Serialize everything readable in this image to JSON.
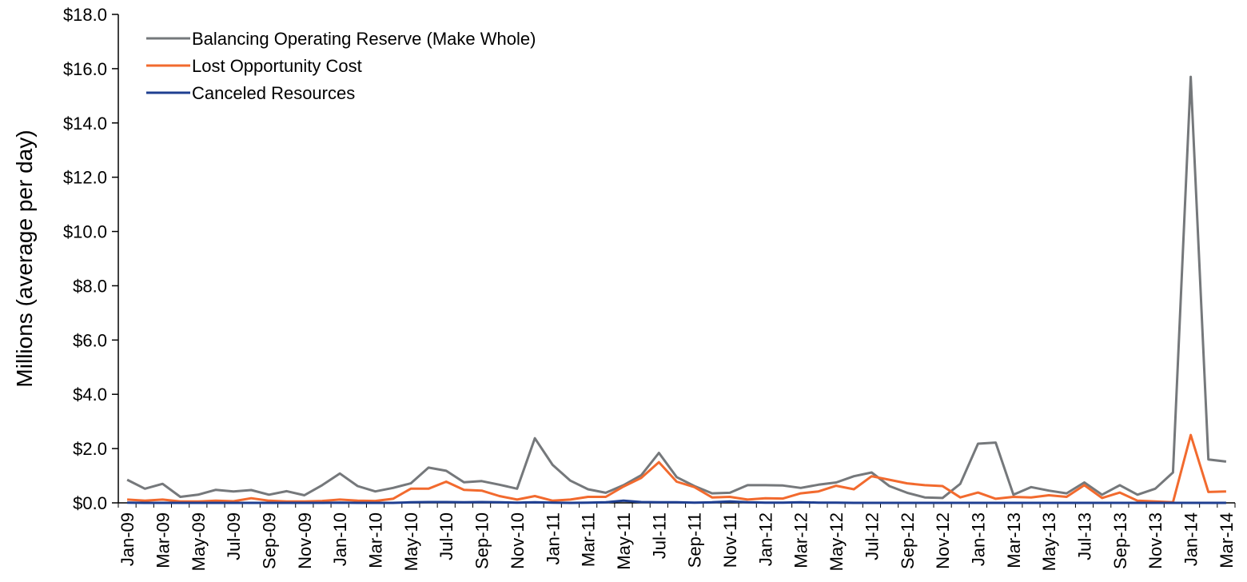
{
  "chart_data": {
    "type": "line",
    "title": "",
    "xlabel": "",
    "ylabel": "Millions (average per day)",
    "ylim": [
      0,
      18
    ],
    "y_ticks": [
      "$0.0",
      "$2.0",
      "$4.0",
      "$6.0",
      "$8.0",
      "$10.0",
      "$12.0",
      "$14.0",
      "$16.0",
      "$18.0"
    ],
    "x_tick_labels": [
      "Jan-09",
      "Mar-09",
      "May-09",
      "Jul-09",
      "Sep-09",
      "Nov-09",
      "Jan-10",
      "Mar-10",
      "May-10",
      "Jul-10",
      "Sep-10",
      "Nov-10",
      "Jan-11",
      "Mar-11",
      "May-11",
      "Jul-11",
      "Sep-11",
      "Nov-11",
      "Jan-12",
      "Mar-12",
      "May-12",
      "Jul-12",
      "Sep-12",
      "Nov-12",
      "Jan-13",
      "Mar-13",
      "May-13",
      "Jul-13",
      "Sep-13",
      "Nov-13",
      "Jan-14",
      "Mar-14"
    ],
    "categories": [
      "Jan-09",
      "Feb-09",
      "Mar-09",
      "Apr-09",
      "May-09",
      "Jun-09",
      "Jul-09",
      "Aug-09",
      "Sep-09",
      "Oct-09",
      "Nov-09",
      "Dec-09",
      "Jan-10",
      "Feb-10",
      "Mar-10",
      "Apr-10",
      "May-10",
      "Jun-10",
      "Jul-10",
      "Aug-10",
      "Sep-10",
      "Oct-10",
      "Nov-10",
      "Dec-10",
      "Jan-11",
      "Feb-11",
      "Mar-11",
      "Apr-11",
      "May-11",
      "Jun-11",
      "Jul-11",
      "Aug-11",
      "Sep-11",
      "Oct-11",
      "Nov-11",
      "Dec-11",
      "Jan-12",
      "Feb-12",
      "Mar-12",
      "Apr-12",
      "May-12",
      "Jun-12",
      "Jul-12",
      "Aug-12",
      "Sep-12",
      "Oct-12",
      "Nov-12",
      "Dec-12",
      "Jan-13",
      "Feb-13",
      "Mar-13",
      "Apr-13",
      "May-13",
      "Jun-13",
      "Jul-13",
      "Aug-13",
      "Sep-13",
      "Oct-13",
      "Nov-13",
      "Dec-13",
      "Jan-14",
      "Feb-14",
      "Mar-14"
    ],
    "legend_position": "top-left",
    "grid": false,
    "series": [
      {
        "name": "Balancing Operating Reserve (Make Whole)",
        "color": "#75787b",
        "values": [
          0.85,
          0.52,
          0.7,
          0.22,
          0.3,
          0.48,
          0.42,
          0.47,
          0.3,
          0.43,
          0.28,
          0.65,
          1.08,
          0.62,
          0.42,
          0.55,
          0.72,
          1.3,
          1.18,
          0.76,
          0.8,
          0.67,
          0.52,
          2.38,
          1.4,
          0.82,
          0.5,
          0.37,
          0.65,
          1.02,
          1.84,
          0.95,
          0.62,
          0.35,
          0.37,
          0.65,
          0.65,
          0.64,
          0.55,
          0.67,
          0.75,
          0.98,
          1.12,
          0.62,
          0.37,
          0.2,
          0.18,
          0.7,
          2.18,
          2.22,
          0.3,
          0.58,
          0.45,
          0.35,
          0.75,
          0.3,
          0.65,
          0.3,
          0.52,
          1.12,
          15.7,
          1.6,
          1.52
        ]
      },
      {
        "name": "Lost Opportunity Cost",
        "color": "#f26a2e",
        "values": [
          0.12,
          0.08,
          0.12,
          0.05,
          0.05,
          0.08,
          0.06,
          0.17,
          0.08,
          0.05,
          0.05,
          0.07,
          0.12,
          0.08,
          0.07,
          0.15,
          0.52,
          0.52,
          0.78,
          0.48,
          0.45,
          0.25,
          0.12,
          0.25,
          0.08,
          0.12,
          0.22,
          0.22,
          0.6,
          0.92,
          1.5,
          0.78,
          0.58,
          0.2,
          0.22,
          0.12,
          0.17,
          0.16,
          0.35,
          0.42,
          0.63,
          0.5,
          0.98,
          0.85,
          0.72,
          0.65,
          0.62,
          0.2,
          0.38,
          0.15,
          0.22,
          0.2,
          0.28,
          0.22,
          0.65,
          0.18,
          0.38,
          0.08,
          0.05,
          0.02,
          2.5,
          0.4,
          0.42
        ]
      },
      {
        "name": "Canceled Resources",
        "color": "#1f3f91",
        "values": [
          0.01,
          0.0,
          0.0,
          0.0,
          0.0,
          0.0,
          0.0,
          0.0,
          0.0,
          0.0,
          0.0,
          0.0,
          0.01,
          0.0,
          0.0,
          0.0,
          0.02,
          0.03,
          0.03,
          0.02,
          0.03,
          0.02,
          0.01,
          0.02,
          0.01,
          0.0,
          0.01,
          0.02,
          0.08,
          0.03,
          0.02,
          0.02,
          0.01,
          0.02,
          0.05,
          0.02,
          0.01,
          0.01,
          0.02,
          0.01,
          0.01,
          0.0,
          0.0,
          0.0,
          0.0,
          0.0,
          0.0,
          0.0,
          0.0,
          0.0,
          0.0,
          0.0,
          0.0,
          0.0,
          0.0,
          0.0,
          0.0,
          0.0,
          0.0,
          0.0,
          0.0,
          0.0,
          0.0
        ]
      }
    ]
  }
}
